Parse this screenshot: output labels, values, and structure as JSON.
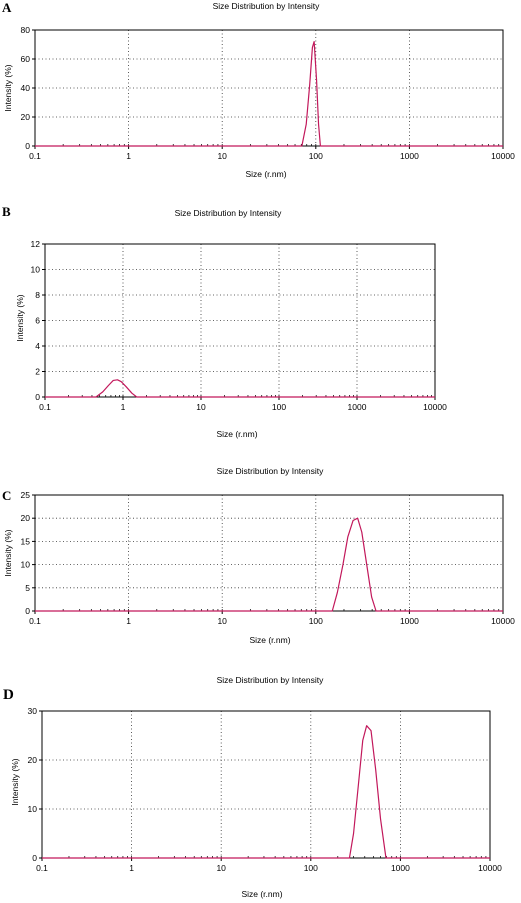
{
  "chart_data": [
    {
      "panel": "A",
      "type": "line",
      "title": "Size Distribution by Intensity",
      "xlabel": "Size (r.nm)",
      "ylabel": "Intensity (%)",
      "xscale": "log",
      "xlim": [
        0.1,
        10000
      ],
      "ylim": [
        0,
        80
      ],
      "xticks": [
        0.1,
        1,
        10,
        100,
        1000,
        10000
      ],
      "xtick_labels": [
        "0.1",
        "1",
        "10",
        "100",
        "1000",
        "10000"
      ],
      "yticks": [
        0,
        20,
        40,
        60,
        80
      ],
      "ytick_labels": [
        "0",
        "20",
        "40",
        "60",
        "80"
      ],
      "grid": true,
      "series": [
        {
          "x": [
            0.1,
            71,
            79,
            86,
            92,
            96,
            102,
            107,
            112,
            10000
          ],
          "y": [
            0,
            0,
            15,
            42,
            68,
            72,
            45,
            15,
            0,
            0
          ]
        }
      ]
    },
    {
      "panel": "B",
      "type": "line",
      "title": "Size Distribution by Intensity",
      "xlabel": "Size (r.nm)",
      "ylabel": "Intensity (%)",
      "xscale": "log",
      "xlim": [
        0.1,
        10000
      ],
      "ylim": [
        0,
        12
      ],
      "xticks": [
        0.1,
        1,
        10,
        100,
        1000,
        10000
      ],
      "xtick_labels": [
        "0.1",
        "1",
        "10",
        "100",
        "1000",
        "10000"
      ],
      "yticks": [
        0,
        2,
        4,
        6,
        8,
        10,
        12
      ],
      "ytick_labels": [
        "0",
        "2",
        "4",
        "6",
        "8",
        "10",
        "12"
      ],
      "grid": true,
      "series": [
        {
          "x": [
            0.1,
            0.45,
            0.55,
            0.65,
            0.75,
            0.85,
            0.95,
            1.1,
            1.3,
            1.5,
            10000
          ],
          "y": [
            0,
            0,
            0.4,
            0.9,
            1.3,
            1.35,
            1.2,
            0.8,
            0.3,
            0,
            0
          ]
        }
      ]
    },
    {
      "panel": "C",
      "type": "line",
      "title": "Size Distribution by Intensity",
      "xlabel": "Size (r.nm)",
      "ylabel": "Intensity (%)",
      "xscale": "log",
      "xlim": [
        0.1,
        10000
      ],
      "ylim": [
        0,
        25
      ],
      "xticks": [
        0.1,
        1,
        10,
        100,
        1000,
        10000
      ],
      "xtick_labels": [
        "0.1",
        "1",
        "10",
        "100",
        "1000",
        "10000"
      ],
      "yticks": [
        0,
        5,
        10,
        15,
        20,
        25
      ],
      "ytick_labels": [
        "0",
        "5",
        "10",
        "15",
        "20",
        "25"
      ],
      "grid": true,
      "series": [
        {
          "x": [
            0.1,
            150,
            170,
            195,
            220,
            250,
            280,
            310,
            350,
            395,
            440,
            10000
          ],
          "y": [
            0,
            0,
            4,
            10,
            16,
            19.5,
            20,
            17,
            10,
            3,
            0,
            0
          ]
        }
      ]
    },
    {
      "panel": "D",
      "type": "line",
      "title": "Size Distribution by Intensity",
      "xlabel": "Size (r.nm)",
      "ylabel": "Intensity (%)",
      "xscale": "log",
      "xlim": [
        0.1,
        10000
      ],
      "ylim": [
        0,
        30
      ],
      "xticks": [
        0.1,
        1,
        10,
        100,
        1000,
        10000
      ],
      "xtick_labels": [
        "0.1",
        "1",
        "10",
        "100",
        "1000",
        "10000"
      ],
      "yticks": [
        0,
        10,
        20,
        30
      ],
      "ytick_labels": [
        "0",
        "10",
        "20",
        "30"
      ],
      "grid": true,
      "series": [
        {
          "x": [
            0.1,
            270,
            300,
            340,
            380,
            420,
            470,
            530,
            600,
            690,
            10000
          ],
          "y": [
            0,
            0,
            5,
            15,
            24,
            27,
            26,
            18,
            8,
            0,
            0
          ]
        }
      ]
    }
  ]
}
